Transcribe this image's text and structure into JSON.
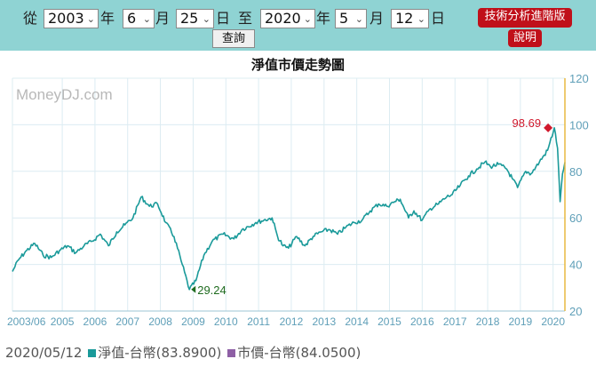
{
  "query": {
    "from_label": "從",
    "year_unit": "年",
    "month_unit": "月",
    "day_unit": "日",
    "to_label": "至",
    "start_year": "2003",
    "start_month": "6",
    "start_day": "25",
    "end_year": "2020",
    "end_month": "5",
    "end_day": "12",
    "submit_label": "查詢",
    "advanced_label": "技術分析進階版",
    "help_label": "說明"
  },
  "chart_title": "淨值市價走勢圖",
  "watermark": "MoneyDJ.com",
  "chart_data": {
    "type": "line",
    "x_tick_labels": [
      "2003/06",
      "2005",
      "2006",
      "2007",
      "2008",
      "2009",
      "2010",
      "2011",
      "2012",
      "2013",
      "2014",
      "2015",
      "2016",
      "2017",
      "2018",
      "2019",
      "2020"
    ],
    "y_ticks": [
      20,
      40,
      60,
      80,
      100,
      120
    ],
    "ylim": [
      20,
      120
    ],
    "y_axis_side": "right",
    "grid": true,
    "series": [
      {
        "name": "淨值-台幣",
        "color": "#1a9a9a",
        "points": [
          [
            "2003-06-25",
            37
          ],
          [
            "2003-09",
            42
          ],
          [
            "2003-12",
            46
          ],
          [
            "2004-03",
            49
          ],
          [
            "2004-06",
            44
          ],
          [
            "2004-09",
            43
          ],
          [
            "2004-12",
            46
          ],
          [
            "2005-03",
            48
          ],
          [
            "2005-06",
            45
          ],
          [
            "2005-09",
            48
          ],
          [
            "2005-12",
            50
          ],
          [
            "2006-03",
            53
          ],
          [
            "2006-06",
            48
          ],
          [
            "2006-09",
            54
          ],
          [
            "2006-12",
            57
          ],
          [
            "2007-03",
            60
          ],
          [
            "2007-06",
            69
          ],
          [
            "2007-09",
            65
          ],
          [
            "2007-12",
            66
          ],
          [
            "2008-03",
            58
          ],
          [
            "2008-06",
            52
          ],
          [
            "2008-09",
            40
          ],
          [
            "2008-11-20",
            29.24
          ],
          [
            "2009-02",
            33
          ],
          [
            "2009-05",
            44
          ],
          [
            "2009-08",
            50
          ],
          [
            "2009-12",
            53
          ],
          [
            "2010-04",
            51
          ],
          [
            "2010-07",
            55
          ],
          [
            "2010-12",
            58
          ],
          [
            "2011-03",
            59
          ],
          [
            "2011-06",
            60
          ],
          [
            "2011-08",
            52
          ],
          [
            "2011-10",
            48
          ],
          [
            "2011-12",
            47
          ],
          [
            "2012-03",
            52
          ],
          [
            "2012-06",
            48
          ],
          [
            "2012-09",
            52
          ],
          [
            "2012-12",
            54
          ],
          [
            "2013-03",
            55
          ],
          [
            "2013-06",
            53
          ],
          [
            "2013-09",
            56
          ],
          [
            "2013-12",
            58
          ],
          [
            "2014-03",
            59
          ],
          [
            "2014-06",
            63
          ],
          [
            "2014-09",
            66
          ],
          [
            "2014-12",
            65
          ],
          [
            "2015-03",
            67
          ],
          [
            "2015-05",
            68
          ],
          [
            "2015-08",
            60
          ],
          [
            "2015-10",
            63
          ],
          [
            "2016-01",
            59
          ],
          [
            "2016-04",
            64
          ],
          [
            "2016-07",
            66
          ],
          [
            "2016-10",
            69
          ],
          [
            "2016-12",
            70
          ],
          [
            "2017-03",
            74
          ],
          [
            "2017-06",
            78
          ],
          [
            "2017-09",
            81
          ],
          [
            "2017-12",
            84
          ],
          [
            "2018-02",
            82
          ],
          [
            "2018-05",
            83
          ],
          [
            "2018-08",
            81
          ],
          [
            "2018-10",
            77
          ],
          [
            "2018-12",
            73
          ],
          [
            "2019-03",
            80
          ],
          [
            "2019-05",
            79
          ],
          [
            "2019-08",
            84
          ],
          [
            "2019-11",
            89
          ],
          [
            "2020-01-15",
            98.69
          ],
          [
            "2020-02-20",
            90
          ],
          [
            "2020-03-19",
            67
          ],
          [
            "2020-04-15",
            79
          ],
          [
            "2020-05-12",
            83.89
          ]
        ]
      },
      {
        "name": "市價-台幣",
        "color": "#8e5fa5",
        "points": []
      }
    ],
    "annotations": [
      {
        "date": "2020-01-15",
        "value": 98.69,
        "label": "98.69",
        "color": "#d0182c",
        "kind": "max"
      },
      {
        "date": "2008-11-20",
        "value": 29.24,
        "label": "29.24",
        "color": "#1f6b1f",
        "kind": "min"
      }
    ]
  },
  "legend": {
    "date": "2020/05/12",
    "items": [
      {
        "label": "淨值-台幣(83.8900)",
        "color": "#1a9a9a"
      },
      {
        "label": "市價-台幣(84.0500)",
        "color": "#8e5fa5"
      }
    ]
  }
}
